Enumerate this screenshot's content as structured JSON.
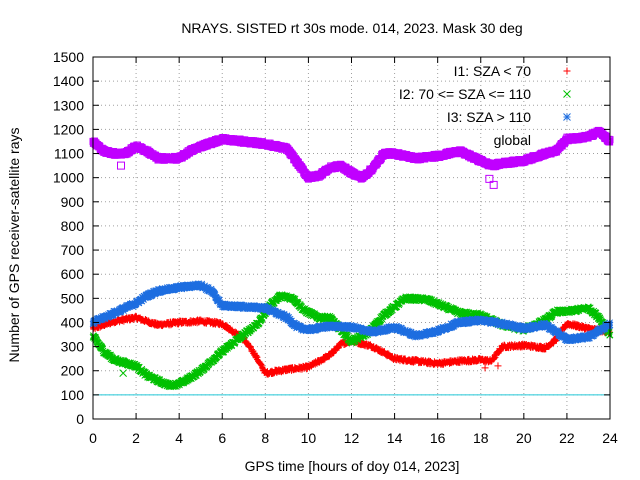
{
  "chart_data": {
    "type": "scatter",
    "title": "NRAYS. SISTED rt 30s mode. 014, 2023. Mask 30 deg",
    "xlabel": "GPS time [hours of doy 014, 2023]",
    "ylabel": "Number of GPS receiver-satellite rays",
    "xlim": [
      0,
      24
    ],
    "ylim": [
      0,
      1500
    ],
    "xticks": [
      0,
      2,
      4,
      6,
      8,
      10,
      12,
      14,
      16,
      18,
      20,
      22,
      24
    ],
    "yticks": [
      0,
      100,
      200,
      300,
      400,
      500,
      600,
      700,
      800,
      900,
      1000,
      1100,
      1200,
      1300,
      1400,
      1500
    ],
    "grid": true,
    "legend_position": "top-right",
    "reference_line": {
      "y": 100,
      "color": "#22c8d8"
    },
    "series": [
      {
        "name": "I1: SZA < 70",
        "color": "#ff0000",
        "marker": "plus",
        "anchors": [
          [
            0,
            375
          ],
          [
            1,
            405
          ],
          [
            2,
            420
          ],
          [
            3,
            390
          ],
          [
            4,
            400
          ],
          [
            5,
            405
          ],
          [
            6,
            395
          ],
          [
            7,
            330
          ],
          [
            7.5,
            270
          ],
          [
            8,
            190
          ],
          [
            9,
            205
          ],
          [
            10,
            215
          ],
          [
            11,
            265
          ],
          [
            11.5,
            310
          ],
          [
            12,
            325
          ],
          [
            13,
            300
          ],
          [
            14,
            250
          ],
          [
            15,
            240
          ],
          [
            16,
            230
          ],
          [
            17,
            240
          ],
          [
            18,
            245
          ],
          [
            18.5,
            240
          ],
          [
            19,
            300
          ],
          [
            20,
            305
          ],
          [
            21,
            295
          ],
          [
            21.5,
            330
          ],
          [
            22,
            395
          ],
          [
            23,
            375
          ],
          [
            24,
            360
          ]
        ],
        "outliers": [
          [
            18.2,
            212
          ],
          [
            18.8,
            220
          ]
        ]
      },
      {
        "name": "I2: 70 <= SZA <= 110",
        "color": "#00c000",
        "marker": "cross",
        "anchors": [
          [
            0,
            345
          ],
          [
            0.5,
            280
          ],
          [
            1,
            245
          ],
          [
            2,
            220
          ],
          [
            2.5,
            180
          ],
          [
            3,
            160
          ],
          [
            3.5,
            140
          ],
          [
            4,
            145
          ],
          [
            4.5,
            170
          ],
          [
            5,
            200
          ],
          [
            6,
            280
          ],
          [
            7,
            350
          ],
          [
            7.7,
            400
          ],
          [
            8.2,
            470
          ],
          [
            8.7,
            510
          ],
          [
            9.3,
            500
          ],
          [
            9.8,
            450
          ],
          [
            10.5,
            420
          ],
          [
            11,
            420
          ],
          [
            11.5,
            370
          ],
          [
            12,
            320
          ],
          [
            12.8,
            360
          ],
          [
            13.5,
            430
          ],
          [
            14.5,
            500
          ],
          [
            15.5,
            495
          ],
          [
            16.2,
            470
          ],
          [
            17,
            440
          ],
          [
            18,
            430
          ],
          [
            19,
            390
          ],
          [
            20,
            370
          ],
          [
            21,
            410
          ],
          [
            21.5,
            445
          ],
          [
            22,
            445
          ],
          [
            23,
            460
          ],
          [
            23.5,
            420
          ],
          [
            24,
            350
          ]
        ],
        "outliers": [
          [
            1.4,
            190
          ]
        ]
      },
      {
        "name": "I3: SZA > 110",
        "color": "#1e6ee0",
        "marker": "star",
        "anchors": [
          [
            0,
            400
          ],
          [
            1,
            440
          ],
          [
            2,
            480
          ],
          [
            2.5,
            510
          ],
          [
            3,
            530
          ],
          [
            4,
            545
          ],
          [
            5,
            555
          ],
          [
            5.5,
            530
          ],
          [
            6,
            470
          ],
          [
            7,
            465
          ],
          [
            8,
            460
          ],
          [
            9,
            420
          ],
          [
            9.5,
            380
          ],
          [
            10,
            370
          ],
          [
            11,
            385
          ],
          [
            12,
            380
          ],
          [
            13,
            360
          ],
          [
            14,
            380
          ],
          [
            15,
            345
          ],
          [
            16,
            365
          ],
          [
            17,
            400
          ],
          [
            18,
            410
          ],
          [
            19,
            395
          ],
          [
            20,
            375
          ],
          [
            21,
            390
          ],
          [
            22,
            330
          ],
          [
            23,
            340
          ],
          [
            24,
            395
          ]
        ],
        "outliers": []
      },
      {
        "name": "global",
        "color": "#c000ff",
        "marker": "square",
        "anchors": [
          [
            0,
            1150
          ],
          [
            0.5,
            1110
          ],
          [
            1,
            1100
          ],
          [
            1.5,
            1100
          ],
          [
            2,
            1130
          ],
          [
            2.5,
            1110
          ],
          [
            3,
            1080
          ],
          [
            4,
            1080
          ],
          [
            4.5,
            1110
          ],
          [
            5,
            1130
          ],
          [
            6,
            1160
          ],
          [
            7,
            1150
          ],
          [
            8,
            1140
          ],
          [
            9,
            1120
          ],
          [
            9.5,
            1060
          ],
          [
            10,
            1000
          ],
          [
            10.5,
            1010
          ],
          [
            11,
            1040
          ],
          [
            11.5,
            1050
          ],
          [
            12,
            1020
          ],
          [
            12.5,
            1000
          ],
          [
            13,
            1040
          ],
          [
            13.5,
            1100
          ],
          [
            14,
            1100
          ],
          [
            15,
            1080
          ],
          [
            16,
            1090
          ],
          [
            17,
            1110
          ],
          [
            17.5,
            1090
          ],
          [
            18,
            1070
          ],
          [
            18.5,
            1050
          ],
          [
            19,
            1060
          ],
          [
            20,
            1070
          ],
          [
            21,
            1100
          ],
          [
            21.5,
            1110
          ],
          [
            22,
            1160
          ],
          [
            23,
            1170
          ],
          [
            23.5,
            1190
          ],
          [
            24,
            1150
          ]
        ],
        "outliers": [
          [
            1.3,
            1050
          ],
          [
            18.6,
            970
          ],
          [
            18.4,
            995
          ]
        ]
      }
    ]
  }
}
